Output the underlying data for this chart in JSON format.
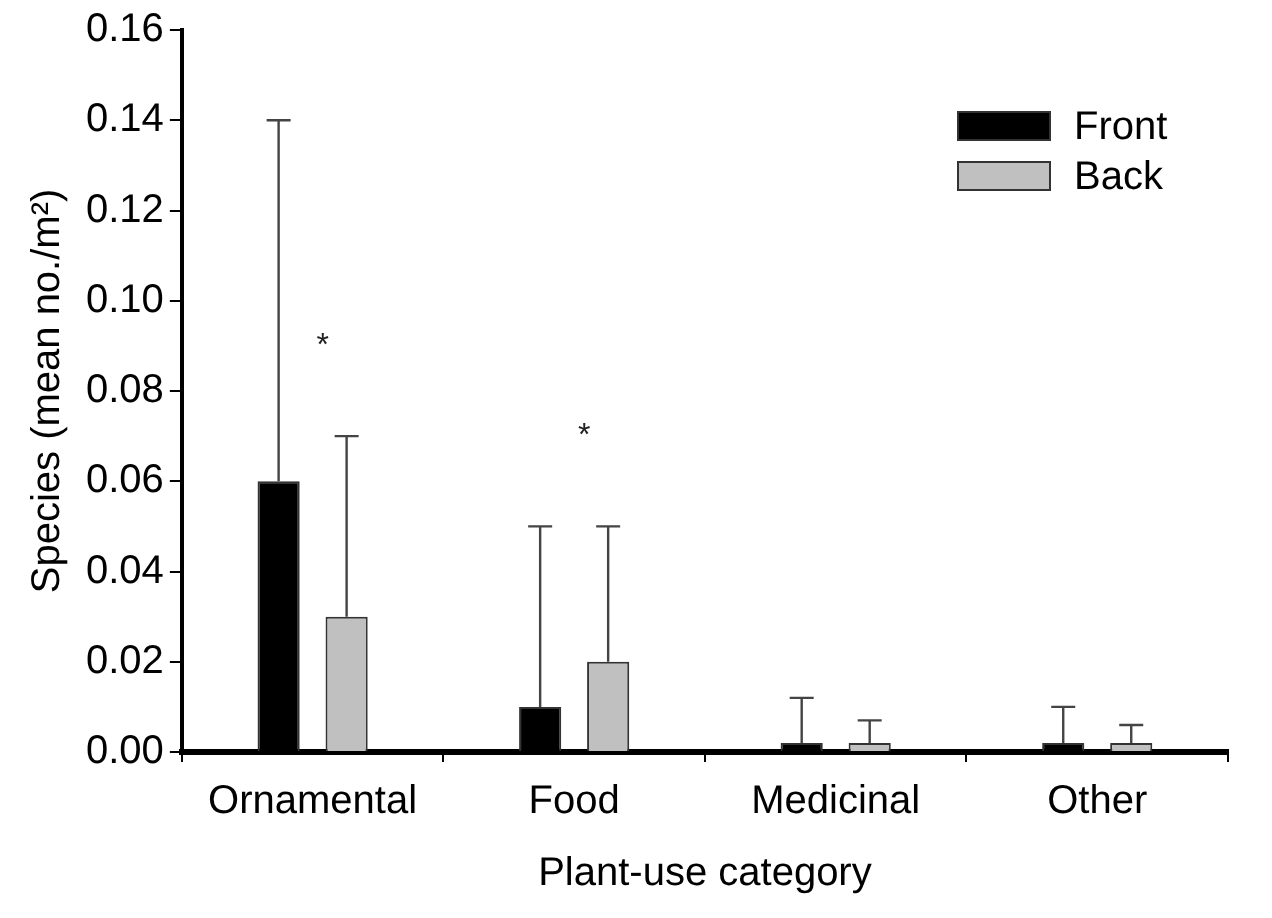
{
  "chart_data": {
    "type": "bar",
    "xlabel": "Plant-use category",
    "ylabel": "Species (mean no./m²)",
    "categories": [
      "Ornamental",
      "Food",
      "Medicinal",
      "Other"
    ],
    "series": [
      {
        "name": "Front",
        "color": "#000000",
        "values": [
          0.06,
          0.01,
          0.002,
          0.002
        ],
        "errors": [
          [
            0.06,
            0.14
          ],
          [
            0.01,
            0.05
          ],
          [
            0.002,
            0.012
          ],
          [
            0.002,
            0.01
          ]
        ]
      },
      {
        "name": "Back",
        "color": "#c0c0c0",
        "values": [
          0.03,
          0.02,
          0.002,
          0.002
        ],
        "errors": [
          [
            0.03,
            0.07
          ],
          [
            0.02,
            0.05
          ],
          [
            0.002,
            0.007
          ],
          [
            0.002,
            0.006
          ]
        ]
      }
    ],
    "ylim": [
      0,
      0.16
    ],
    "yticks": [
      {
        "value": 0,
        "label": "0.00"
      },
      {
        "value": 0.02,
        "label": "0.02"
      },
      {
        "value": 0.04,
        "label": "0.04"
      },
      {
        "value": 0.06,
        "label": "0.06"
      },
      {
        "value": 0.08,
        "label": "0.08"
      },
      {
        "value": 0.1,
        "label": "0.10"
      },
      {
        "value": 0.12,
        "label": "0.12"
      },
      {
        "value": 0.14,
        "label": "0.14"
      },
      {
        "value": 0.16,
        "label": "0.16"
      }
    ],
    "annotations": [
      "*",
      "*"
    ],
    "grid": false,
    "legend": "top right"
  }
}
